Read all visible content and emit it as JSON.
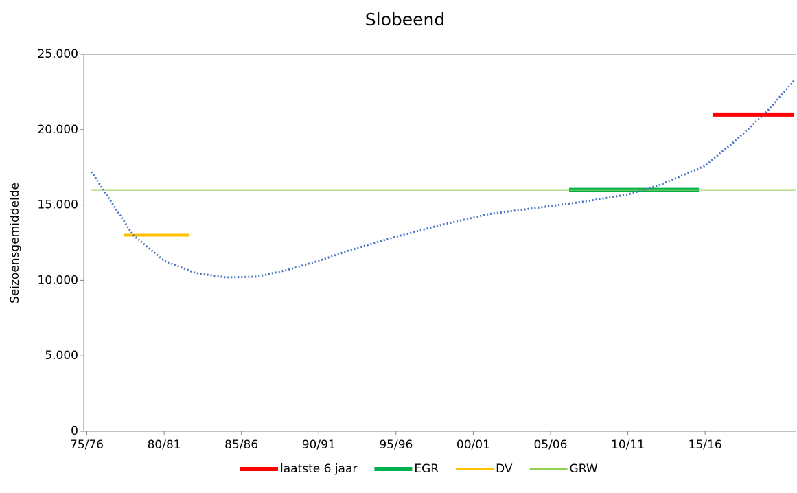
{
  "chart_data": {
    "type": "line",
    "title": "Slobeend",
    "ylabel": "Seizoensgemiddelde",
    "xlim": [
      1974.8,
      2020.9
    ],
    "xticks": [
      {
        "value": 1975,
        "label": "75/76"
      },
      {
        "value": 1980,
        "label": "80/81"
      },
      {
        "value": 1985,
        "label": "85/86"
      },
      {
        "value": 1990,
        "label": "90/91"
      },
      {
        "value": 1995,
        "label": "95/96"
      },
      {
        "value": 2000,
        "label": "00/01"
      },
      {
        "value": 2005,
        "label": "05/06"
      },
      {
        "value": 2010,
        "label": "10/11"
      },
      {
        "value": 2015,
        "label": "15/16"
      }
    ],
    "ylim": [
      0,
      25000
    ],
    "yticks": [
      0,
      {
        "value": 5000,
        "label": "5.000"
      },
      {
        "value": 10000,
        "label": "10.000"
      },
      {
        "value": 15000,
        "label": "15.000"
      },
      {
        "value": 20000,
        "label": "20.000"
      },
      {
        "value": 25000,
        "label": "25.000"
      }
    ],
    "series": [
      {
        "name": "laatste 6 jaar",
        "color": "#ff0000",
        "width": 6,
        "x": [
          2015.5,
          2020.75
        ],
        "values": [
          21000,
          21000
        ]
      },
      {
        "name": "EGR",
        "color": "#00b050",
        "width": 6,
        "x": [
          2006.2,
          2014.6
        ],
        "values": [
          16000,
          16000
        ]
      },
      {
        "name": "DV",
        "color": "#ffc000",
        "width": 4,
        "x": [
          1977.4,
          1981.6
        ],
        "values": [
          13000,
          13000
        ]
      },
      {
        "name": "GRW",
        "color": "#92d050",
        "width": 2,
        "x": [
          1975.3,
          2020.9
        ],
        "values": [
          16000,
          16000
        ]
      }
    ],
    "trend": {
      "color": "#4472c4",
      "x": [
        1975.3,
        1978,
        1980,
        1982,
        1984,
        1986,
        1988,
        1990,
        1992,
        1995,
        1998,
        2001,
        2004,
        2007,
        2010,
        2012,
        2015,
        2017,
        2019,
        2020.8
      ],
      "values": [
        17200,
        13000,
        11300,
        10500,
        10200,
        10250,
        10700,
        11300,
        12000,
        12900,
        13700,
        14400,
        14800,
        15200,
        15700,
        16300,
        17600,
        19300,
        21200,
        23300
      ]
    }
  }
}
